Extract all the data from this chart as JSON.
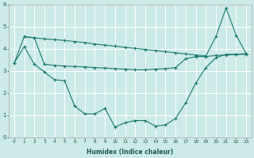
{
  "xlabel": "Humidex (Indice chaleur)",
  "xlim": [
    -0.5,
    23.5
  ],
  "ylim": [
    0,
    6
  ],
  "xtick_labels": [
    "0",
    "1",
    "2",
    "3",
    "4",
    "5",
    "6",
    "7",
    "8",
    "9",
    "10",
    "11",
    "12",
    "13",
    "14",
    "15",
    "16",
    "17",
    "18",
    "19",
    "20",
    "21",
    "22",
    "23"
  ],
  "xtick_vals": [
    0,
    1,
    2,
    3,
    4,
    5,
    6,
    7,
    8,
    9,
    10,
    11,
    12,
    13,
    14,
    15,
    16,
    17,
    18,
    19,
    20,
    21,
    22,
    23
  ],
  "ytick_vals": [
    0,
    1,
    2,
    3,
    4,
    5,
    6
  ],
  "bg_color": "#cceae7",
  "line_color": "#1a7a6e",
  "grid_color": "#ffffff",
  "line1_x": [
    0,
    1,
    2,
    3,
    4,
    5,
    6,
    7,
    8,
    9,
    10,
    11,
    12,
    13,
    14,
    15,
    16,
    17,
    18,
    19,
    20,
    21,
    22,
    23
  ],
  "line1_y": [
    3.35,
    4.55,
    4.5,
    4.45,
    4.42,
    4.38,
    4.33,
    4.28,
    4.22,
    4.17,
    4.12,
    4.07,
    4.02,
    3.97,
    3.92,
    3.87,
    3.82,
    3.77,
    3.72,
    3.68,
    4.55,
    5.85,
    4.62,
    3.78
  ],
  "line2_x": [
    0,
    1,
    2,
    3,
    4,
    5,
    6,
    7,
    8,
    9,
    10,
    11,
    12,
    13,
    14,
    15,
    16,
    17,
    18,
    19,
    20,
    21,
    22,
    23
  ],
  "line2_y": [
    3.35,
    4.1,
    3.3,
    2.95,
    2.6,
    2.55,
    1.4,
    1.05,
    1.05,
    1.3,
    0.45,
    0.65,
    0.75,
    0.75,
    0.5,
    0.55,
    0.85,
    1.55,
    2.45,
    3.15,
    3.6,
    3.75,
    3.75,
    3.75
  ],
  "line3_x": [
    1,
    2,
    3,
    4,
    5,
    6,
    7,
    8,
    9,
    10,
    11,
    12,
    13,
    14,
    15,
    16,
    17,
    18,
    19,
    20,
    21,
    22,
    23
  ],
  "line3_y": [
    4.55,
    4.5,
    3.3,
    3.25,
    3.22,
    3.2,
    3.18,
    3.15,
    3.13,
    3.1,
    3.08,
    3.05,
    3.05,
    3.08,
    3.1,
    3.15,
    3.55,
    3.65,
    3.65,
    3.7,
    3.72,
    3.75,
    3.78
  ]
}
